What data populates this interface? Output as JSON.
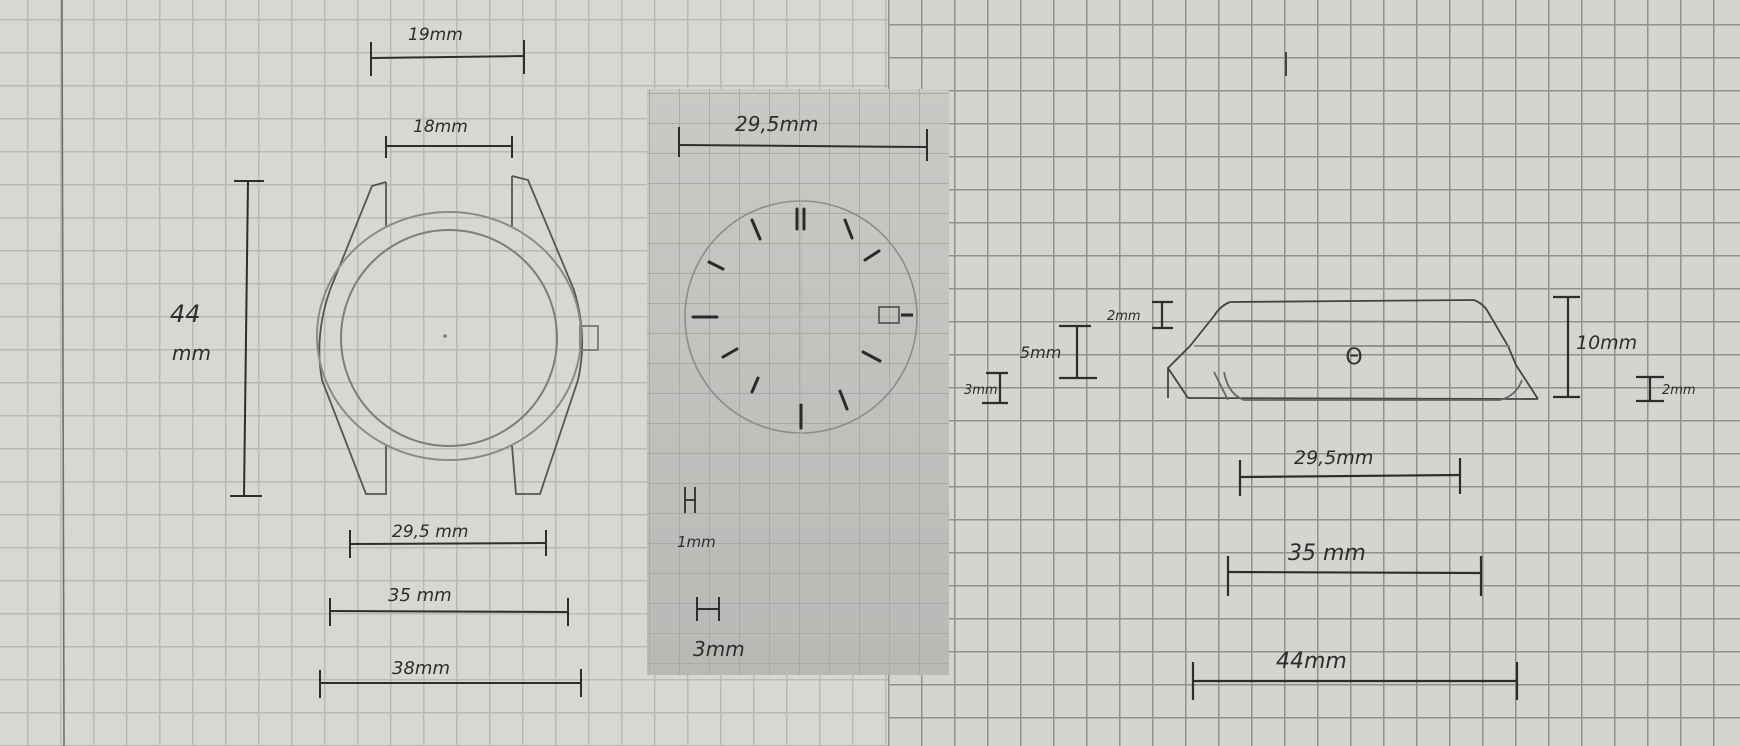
{
  "front_view": {
    "lug_outer": "19mm",
    "lug_inner": "18mm",
    "height": "44",
    "height_unit": "mm",
    "crystal": "29,5 mm",
    "bezel": "35 mm",
    "case": "38mm"
  },
  "dial_view": {
    "diameter": "29,5mm",
    "marker_height_label": "H",
    "marker_height": "1mm",
    "marker_width": "3mm"
  },
  "side_view": {
    "top_step": "2mm",
    "mid_step": "5mm",
    "low_step": "3mm",
    "total_height": "10mm",
    "lug_height": "2mm",
    "crystal": "29,5mm",
    "bezel": "35 mm",
    "lug_to_lug": "44mm",
    "crown_symbol": "Θ"
  },
  "colors": {
    "paper": "#d7d7d3",
    "grid": "#b9bab6",
    "ink": "#2d2d2d",
    "pencil": "#8a8a8a"
  }
}
